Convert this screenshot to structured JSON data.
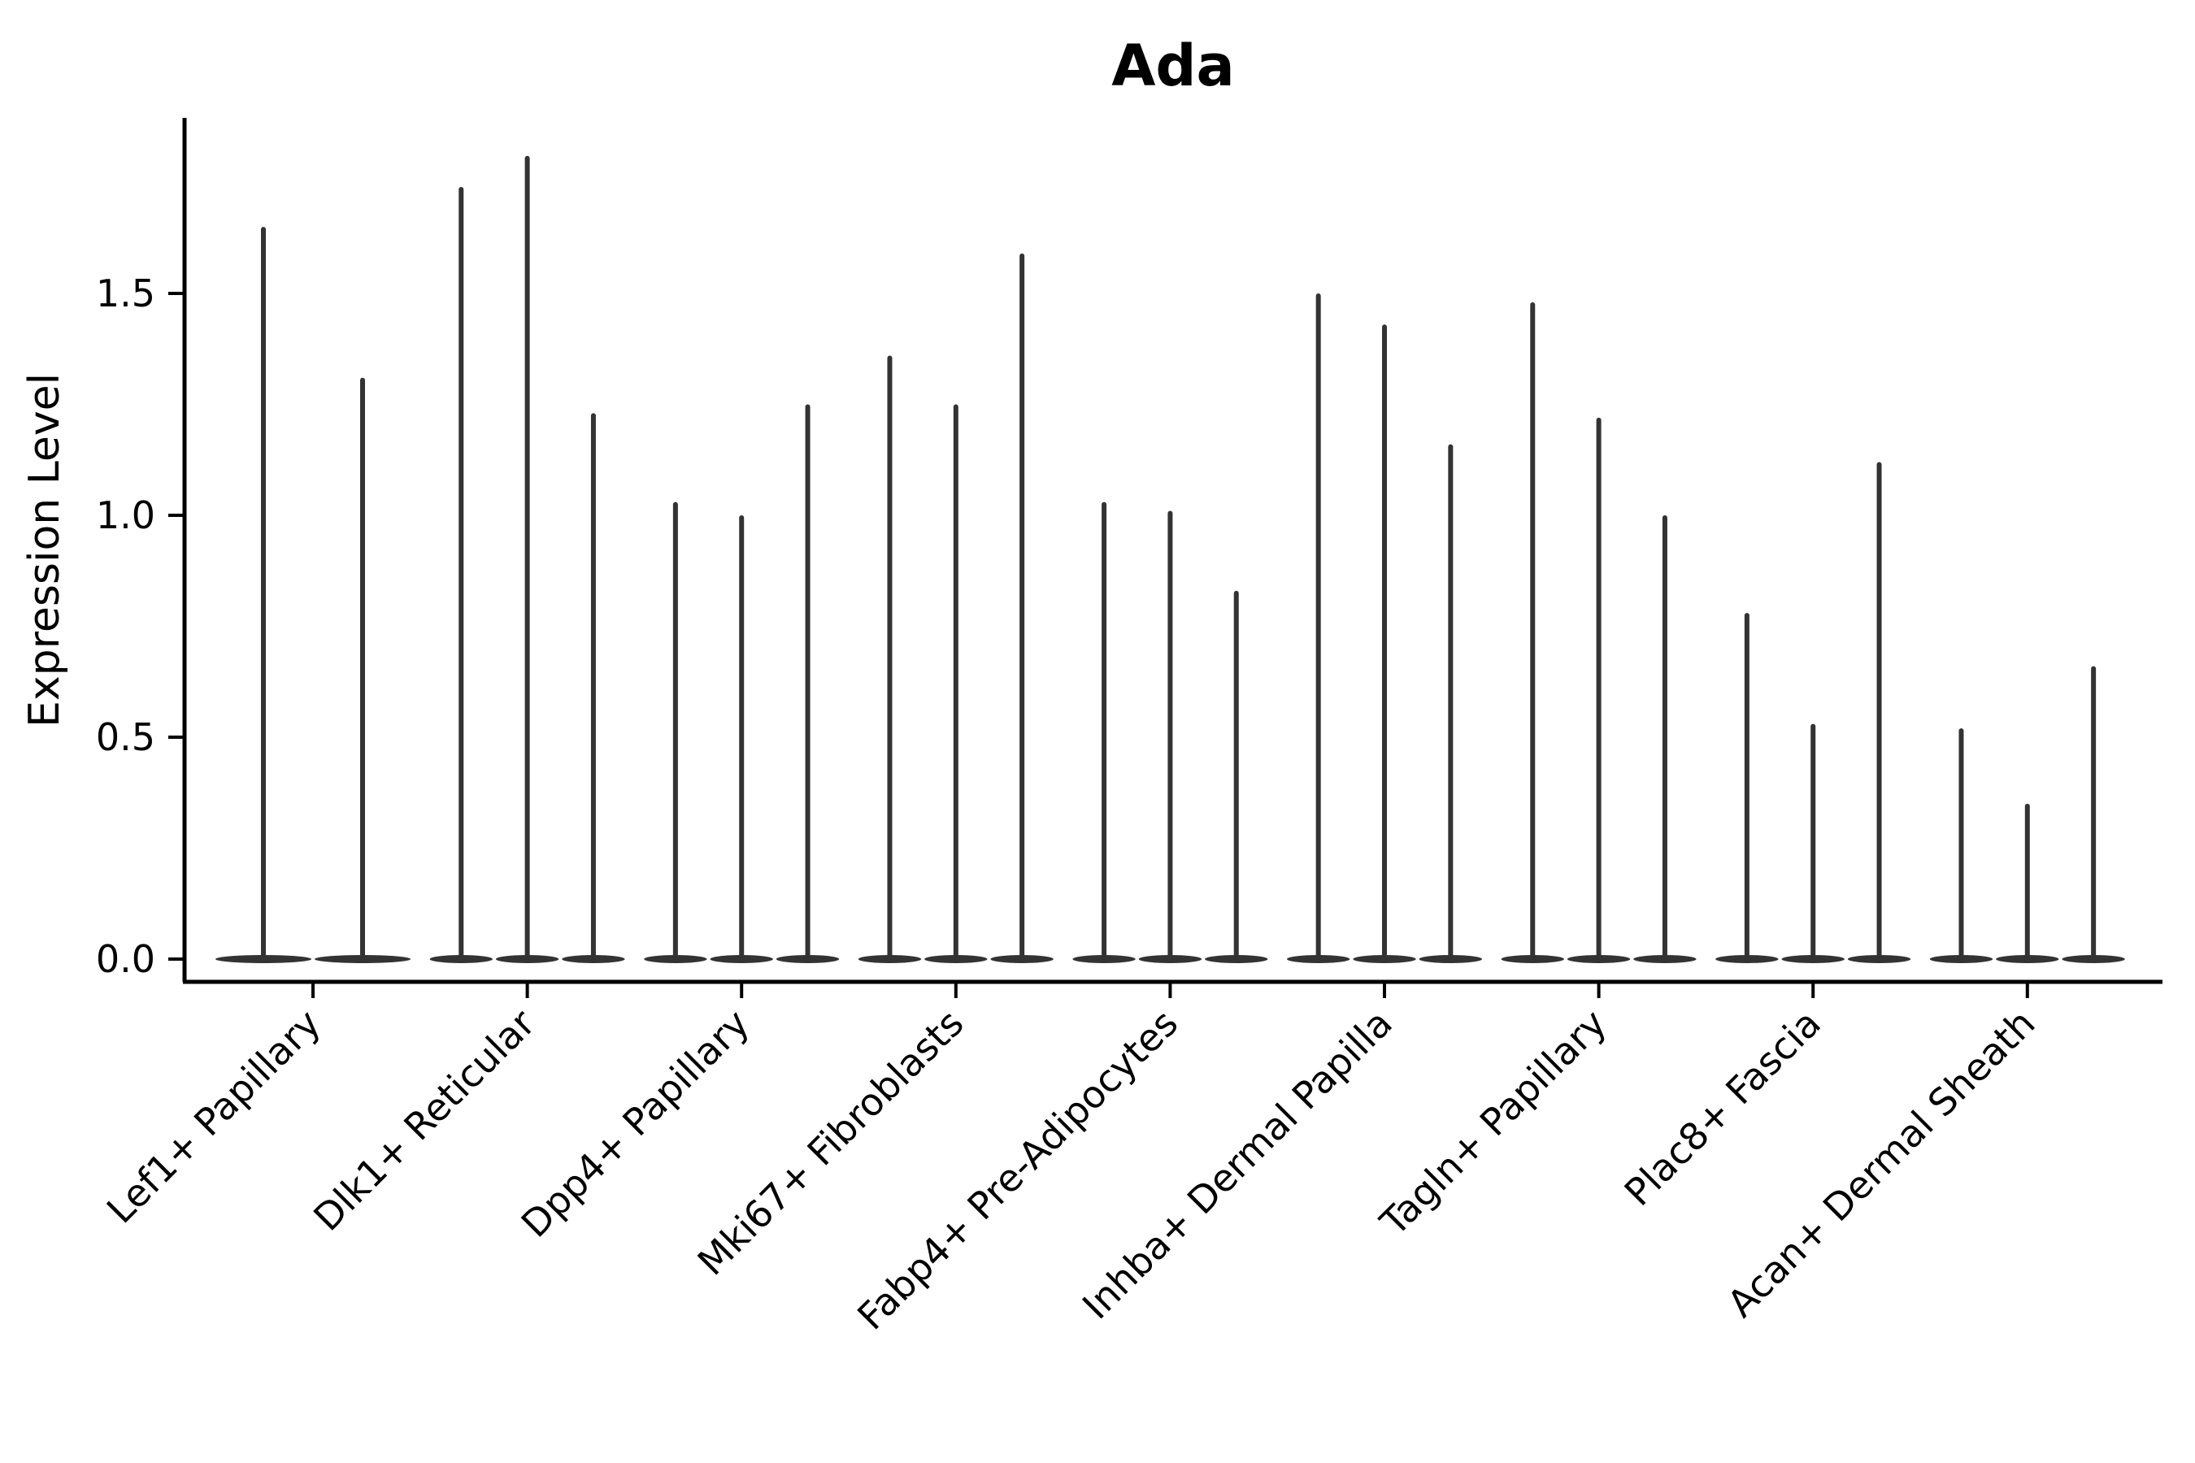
{
  "title": "Ada",
  "chart_data": {
    "type": "violin",
    "title": "Ada",
    "xlabel": "",
    "ylabel": "Expression Level",
    "grid": false,
    "legend": null,
    "background_color": "#ffffff",
    "violin_color": "#333333",
    "axis_color": "#000000",
    "ylim": [
      -0.05,
      1.89
    ],
    "yticks": [
      0.0,
      0.5,
      1.0,
      1.5
    ],
    "ytick_labels": [
      "0.0",
      "0.5",
      "1.0",
      "1.5"
    ],
    "categories": [
      "Lef1+ Papillary",
      "Dlk1+ Reticular",
      "Dpp4+ Papillary",
      "Mki67+ Fibroblasts",
      "Fabp4+ Pre-Adipocytes",
      "Inhba+ Dermal Papilla",
      "Tagln+ Papillary",
      "Plac8+ Fascia",
      "Acan+ Dermal Sheath"
    ],
    "series": [
      {
        "category": "Lef1+ Papillary",
        "violin_peaks": [
          1.65,
          1.31
        ]
      },
      {
        "category": "Dlk1+ Reticular",
        "violin_peaks": [
          1.74,
          1.81,
          1.23
        ]
      },
      {
        "category": "Dpp4+ Papillary",
        "violin_peaks": [
          1.03,
          1.0,
          1.25
        ]
      },
      {
        "category": "Mki67+ Fibroblasts",
        "violin_peaks": [
          1.36,
          1.25,
          1.59
        ]
      },
      {
        "category": "Fabp4+ Pre-Adipocytes",
        "violin_peaks": [
          1.03,
          1.01,
          0.83
        ]
      },
      {
        "category": "Inhba+ Dermal Papilla",
        "violin_peaks": [
          1.5,
          1.43,
          1.16
        ]
      },
      {
        "category": "Tagln+ Papillary",
        "violin_peaks": [
          1.48,
          1.22,
          1.0
        ]
      },
      {
        "category": "Plac8+ Fascia",
        "violin_peaks": [
          0.78,
          0.53,
          1.12
        ]
      },
      {
        "category": "Acan+ Dermal Sheath",
        "violin_peaks": [
          0.52,
          0.35,
          0.66
        ]
      }
    ],
    "violin_description": "Each category shows narrow near-zero-width violins (sparse expression): a flat body at 0.0 with a thin vertical spike rising to the listed peak expression value."
  }
}
